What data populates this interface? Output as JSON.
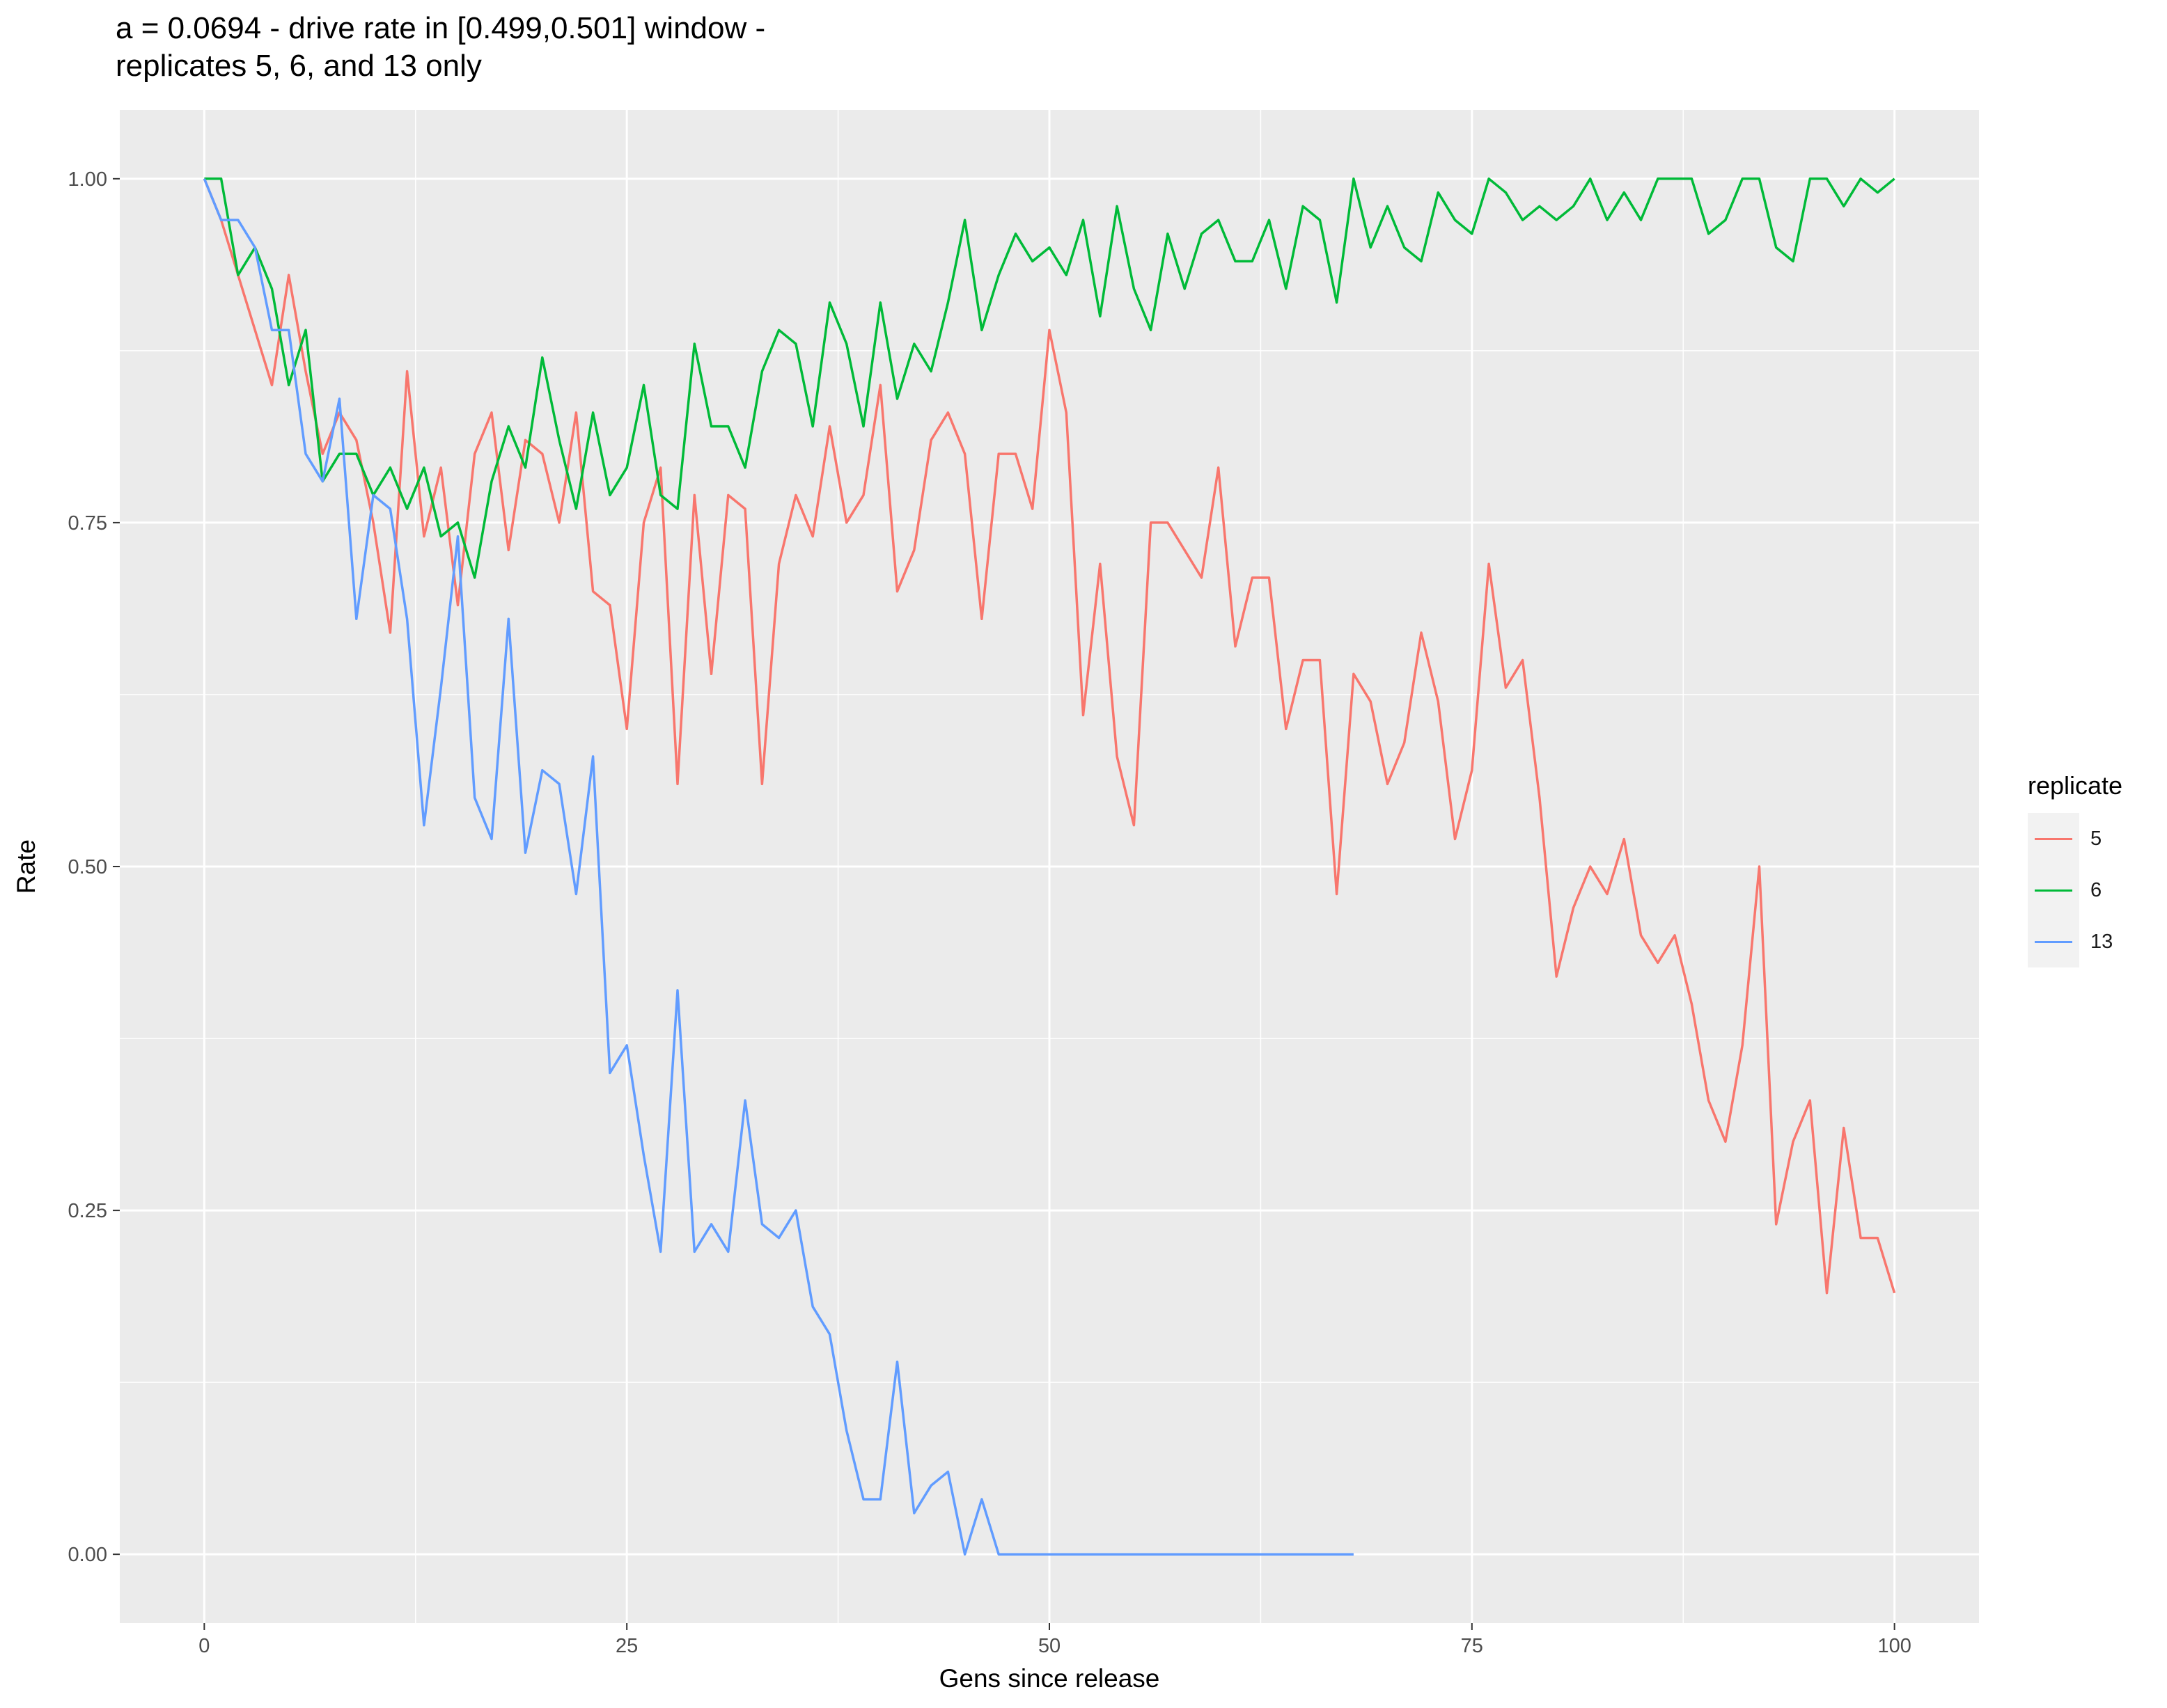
{
  "chart_data": {
    "type": "line",
    "title": "a = 0.0694 - drive rate in [0.499,0.501] window -\nreplicates 5, 6, and 13 only",
    "xlabel": "Gens since release",
    "ylabel": "Rate",
    "xlim": [
      -5,
      105
    ],
    "ylim": [
      -0.05,
      1.05
    ],
    "x_ticks": [
      0,
      25,
      50,
      75,
      100
    ],
    "x_tick_labels": [
      "0",
      "25",
      "50",
      "75",
      "100"
    ],
    "y_ticks": [
      0,
      0.25,
      0.5,
      0.75,
      1.0
    ],
    "y_tick_labels": [
      "0.00",
      "0.25",
      "0.50",
      "0.75",
      "1.00"
    ],
    "grid": true,
    "legend_title": "replicate",
    "legend_position": "right",
    "series": [
      {
        "name": "5",
        "color": "#F8766D",
        "x": [
          0,
          1,
          2,
          3,
          4,
          5,
          6,
          7,
          8,
          9,
          10,
          11,
          12,
          13,
          14,
          15,
          16,
          17,
          18,
          19,
          20,
          21,
          22,
          23,
          24,
          25,
          26,
          27,
          28,
          29,
          30,
          31,
          32,
          33,
          34,
          35,
          36,
          37,
          38,
          39,
          40,
          41,
          42,
          43,
          44,
          45,
          46,
          47,
          48,
          49,
          50,
          51,
          52,
          53,
          54,
          55,
          56,
          57,
          58,
          59,
          60,
          61,
          62,
          63,
          64,
          65,
          66,
          67,
          68,
          69,
          70,
          71,
          72,
          73,
          74,
          75,
          76,
          77,
          78,
          79,
          80,
          81,
          82,
          83,
          84,
          85,
          86,
          87,
          88,
          89,
          90,
          91,
          92,
          93,
          94,
          95,
          96,
          97,
          98,
          99,
          100
        ],
        "y": [
          1.0,
          0.97,
          0.93,
          0.89,
          0.85,
          0.93,
          0.86,
          0.8,
          0.83,
          0.81,
          0.75,
          0.67,
          0.86,
          0.74,
          0.79,
          0.69,
          0.8,
          0.83,
          0.73,
          0.81,
          0.8,
          0.75,
          0.83,
          0.7,
          0.69,
          0.6,
          0.75,
          0.79,
          0.56,
          0.77,
          0.64,
          0.77,
          0.76,
          0.56,
          0.72,
          0.77,
          0.74,
          0.82,
          0.75,
          0.77,
          0.85,
          0.7,
          0.73,
          0.81,
          0.83,
          0.8,
          0.68,
          0.8,
          0.8,
          0.76,
          0.89,
          0.83,
          0.61,
          0.72,
          0.58,
          0.53,
          0.75,
          0.75,
          0.73,
          0.71,
          0.79,
          0.66,
          0.71,
          0.71,
          0.6,
          0.65,
          0.65,
          0.48,
          0.64,
          0.62,
          0.56,
          0.59,
          0.67,
          0.62,
          0.52,
          0.57,
          0.72,
          0.63,
          0.65,
          0.55,
          0.42,
          0.47,
          0.5,
          0.48,
          0.52,
          0.45,
          0.43,
          0.45,
          0.4,
          0.33,
          0.3,
          0.37,
          0.5,
          0.24,
          0.3,
          0.33,
          0.19,
          0.31,
          0.23,
          0.23,
          0.19
        ]
      },
      {
        "name": "6",
        "color": "#00BA38",
        "x": [
          0,
          1,
          2,
          3,
          4,
          5,
          6,
          7,
          8,
          9,
          10,
          11,
          12,
          13,
          14,
          15,
          16,
          17,
          18,
          19,
          20,
          21,
          22,
          23,
          24,
          25,
          26,
          27,
          28,
          29,
          30,
          31,
          32,
          33,
          34,
          35,
          36,
          37,
          38,
          39,
          40,
          41,
          42,
          43,
          44,
          45,
          46,
          47,
          48,
          49,
          50,
          51,
          52,
          53,
          54,
          55,
          56,
          57,
          58,
          59,
          60,
          61,
          62,
          63,
          64,
          65,
          66,
          67,
          68,
          69,
          70,
          71,
          72,
          73,
          74,
          75,
          76,
          77,
          78,
          79,
          80,
          81,
          82,
          83,
          84,
          85,
          86,
          87,
          88,
          89,
          90,
          91,
          92,
          93,
          94,
          95,
          96,
          97,
          98,
          99,
          100
        ],
        "y": [
          1.0,
          1.0,
          0.93,
          0.95,
          0.92,
          0.85,
          0.89,
          0.78,
          0.8,
          0.8,
          0.77,
          0.79,
          0.76,
          0.79,
          0.74,
          0.75,
          0.71,
          0.78,
          0.82,
          0.79,
          0.87,
          0.81,
          0.76,
          0.83,
          0.77,
          0.79,
          0.85,
          0.77,
          0.76,
          0.88,
          0.82,
          0.82,
          0.79,
          0.86,
          0.89,
          0.88,
          0.82,
          0.91,
          0.88,
          0.82,
          0.91,
          0.84,
          0.88,
          0.86,
          0.91,
          0.97,
          0.89,
          0.93,
          0.96,
          0.94,
          0.95,
          0.93,
          0.97,
          0.9,
          0.98,
          0.92,
          0.89,
          0.96,
          0.92,
          0.96,
          0.97,
          0.94,
          0.94,
          0.97,
          0.92,
          0.98,
          0.97,
          0.91,
          1.0,
          0.95,
          0.98,
          0.95,
          0.94,
          0.99,
          0.97,
          0.96,
          1.0,
          0.99,
          0.97,
          0.98,
          0.97,
          0.98,
          1.0,
          0.97,
          0.99,
          0.97,
          1.0,
          1.0,
          1.0,
          0.96,
          0.97,
          1.0,
          1.0,
          0.95,
          0.94,
          1.0,
          1.0,
          0.98,
          1.0,
          0.99,
          1.0
        ]
      },
      {
        "name": "13",
        "color": "#619CFF",
        "x": [
          0,
          1,
          2,
          3,
          4,
          5,
          6,
          7,
          8,
          9,
          10,
          11,
          12,
          13,
          14,
          15,
          16,
          17,
          18,
          19,
          20,
          21,
          22,
          23,
          24,
          25,
          26,
          27,
          28,
          29,
          30,
          31,
          32,
          33,
          34,
          35,
          36,
          37,
          38,
          39,
          40,
          41,
          42,
          43,
          44,
          45,
          46,
          47,
          48,
          49,
          50,
          51,
          52,
          53,
          54,
          55,
          56,
          57,
          58,
          59,
          60,
          61,
          62,
          63,
          64,
          65,
          66,
          67,
          68
        ],
        "y": [
          1.0,
          0.97,
          0.97,
          0.95,
          0.89,
          0.89,
          0.8,
          0.78,
          0.84,
          0.68,
          0.77,
          0.76,
          0.68,
          0.53,
          0.63,
          0.74,
          0.55,
          0.52,
          0.68,
          0.51,
          0.57,
          0.56,
          0.48,
          0.58,
          0.35,
          0.37,
          0.29,
          0.22,
          0.41,
          0.22,
          0.24,
          0.22,
          0.33,
          0.24,
          0.23,
          0.25,
          0.18,
          0.16,
          0.09,
          0.04,
          0.04,
          0.14,
          0.03,
          0.05,
          0.06,
          0.0,
          0.04,
          0.0,
          0.0,
          0.0,
          0.0,
          0.0,
          0.0,
          0.0,
          0.0,
          0.0,
          0.0,
          0.0,
          0.0,
          0.0,
          0.0,
          0.0,
          0.0,
          0.0,
          0.0,
          0.0,
          0.0,
          0.0,
          0.0
        ]
      }
    ]
  }
}
